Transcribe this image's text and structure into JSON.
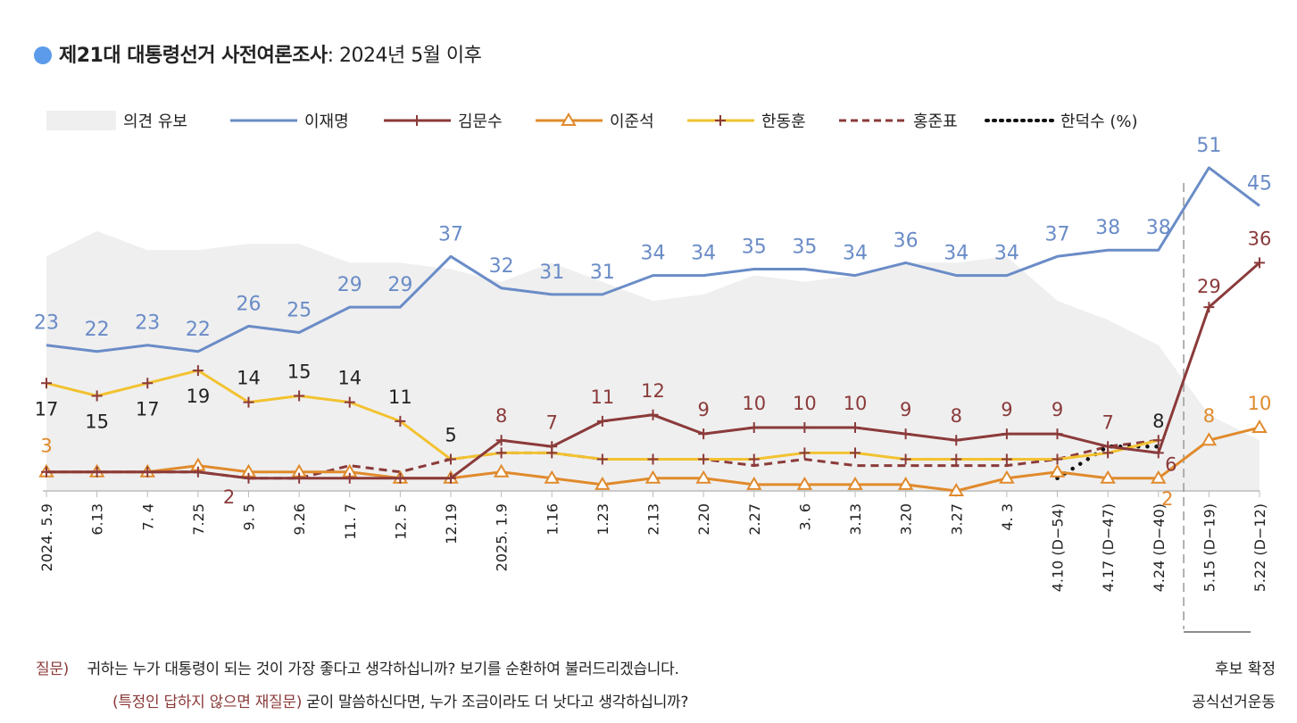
{
  "title": {
    "bold": "제21대 대통령선거 사전여론조사",
    "rest": ": 2024년 5월 이후"
  },
  "legend": [
    "의견 유보",
    "이재명",
    "김문수",
    "이준석",
    "한동훈",
    "홍준표",
    "한덕수 (%)"
  ],
  "colors": {
    "undecided": "#efefef",
    "lee_jm": "#6a8cc7",
    "kim_ms": "#8b3a3a",
    "lee_js": "#e08a2c",
    "han_dh": "#f2c230",
    "hong_jp": "#8b3a3a",
    "han_ds": "#111111",
    "title_dot": "#5b9bea"
  },
  "chart_data": {
    "type": "line",
    "x": [
      "2024. 5.9",
      "6.13",
      "7. 4",
      "7.25",
      "9. 5",
      "9.26",
      "11. 7",
      "12. 5",
      "12.19",
      "2025. 1.9",
      "1.16",
      "1.23",
      "2.13",
      "2.20",
      "2.27",
      "3. 6",
      "3.13",
      "3.20",
      "3.27",
      "4. 3",
      "4.10 (D−54)",
      "4.17 (D−47)",
      "4.24 (D−40)",
      "5.15 (D−19)",
      "5.22 (D−12)"
    ],
    "ylim": [
      0,
      57
    ],
    "series": [
      {
        "name": "의견 유보",
        "kind": "area",
        "values": [
          37,
          41,
          38,
          38,
          39,
          39,
          36,
          36,
          35,
          33,
          36,
          33,
          30,
          31,
          34,
          33,
          34,
          36,
          36,
          37,
          30,
          27,
          23,
          12,
          8
        ],
        "labels": []
      },
      {
        "name": "이재명",
        "values": [
          23,
          22,
          23,
          22,
          26,
          25,
          29,
          29,
          37,
          32,
          31,
          31,
          34,
          34,
          35,
          35,
          34,
          36,
          34,
          34,
          37,
          38,
          38,
          51,
          45
        ],
        "labels": [
          "23",
          "22",
          "23",
          "22",
          "26",
          "25",
          "29",
          "29",
          "37",
          "32",
          "31",
          "31",
          "34",
          "34",
          "35",
          "35",
          "34",
          "36",
          "34",
          "34",
          "37",
          "38",
          "38",
          "51",
          "45"
        ]
      },
      {
        "name": "김문수",
        "values": [
          3,
          3,
          3,
          3,
          2,
          2,
          2,
          2,
          2,
          8,
          7,
          11,
          12,
          9,
          10,
          10,
          10,
          9,
          8,
          9,
          9,
          7,
          6,
          29,
          36
        ],
        "labels": [
          null,
          null,
          null,
          null,
          null,
          null,
          null,
          null,
          null,
          "8",
          "7",
          "11",
          "12",
          "9",
          "10",
          "10",
          "10",
          "9",
          "8",
          "9",
          "9",
          "7",
          "6",
          "29",
          "36"
        ]
      },
      {
        "name": "이준석",
        "values": [
          3,
          3,
          3,
          4,
          3,
          3,
          3,
          2,
          2,
          3,
          2,
          1,
          2,
          2,
          1,
          1,
          1,
          1,
          0,
          2,
          3,
          2,
          2,
          8,
          10
        ],
        "labels": [
          "3",
          null,
          null,
          null,
          null,
          null,
          null,
          null,
          null,
          null,
          null,
          null,
          null,
          null,
          null,
          null,
          null,
          null,
          null,
          null,
          null,
          null,
          "2",
          "8",
          "10"
        ]
      },
      {
        "name": "한동훈",
        "values": [
          17,
          15,
          17,
          19,
          14,
          15,
          14,
          11,
          5,
          6,
          6,
          5,
          5,
          5,
          5,
          6,
          6,
          5,
          5,
          5,
          5,
          6,
          8,
          null,
          null
        ],
        "labels": [
          "17",
          "15",
          "17",
          "19",
          "14",
          "15",
          "14",
          "11",
          "5",
          null,
          null,
          null,
          null,
          null,
          null,
          null,
          null,
          null,
          null,
          null,
          null,
          null,
          "8",
          null,
          null
        ]
      },
      {
        "name": "홍준표",
        "values": [
          3,
          3,
          3,
          3,
          2,
          2,
          4,
          3,
          5,
          6,
          6,
          5,
          5,
          5,
          4,
          5,
          4,
          4,
          4,
          4,
          5,
          7,
          8,
          null,
          null
        ],
        "labels": [
          null,
          null,
          null,
          null,
          "2",
          null,
          null,
          null,
          null,
          null,
          null,
          null,
          null,
          null,
          null,
          null,
          null,
          null,
          null,
          null,
          null,
          null,
          null,
          null,
          null
        ]
      },
      {
        "name": "한덕수",
        "values": [
          null,
          null,
          null,
          null,
          null,
          null,
          null,
          null,
          null,
          null,
          null,
          null,
          null,
          null,
          null,
          null,
          null,
          null,
          null,
          null,
          2,
          7,
          7,
          null,
          null
        ],
        "labels": []
      }
    ],
    "annotation": [
      "후보 확정",
      "공식선거운동"
    ]
  },
  "question": {
    "label1": "질문)",
    "text1": "귀하는 누가 대통령이 되는 것이 가장 좋다고 생각하십니까? 보기를 순환하여 불러드리겠습니다.",
    "label2": "(특정인 답하지 않으면 재질문)",
    "text2": " 굳이 말씀하신다면, 누가 조금이라도 더 낫다고 생각하십니까?"
  }
}
